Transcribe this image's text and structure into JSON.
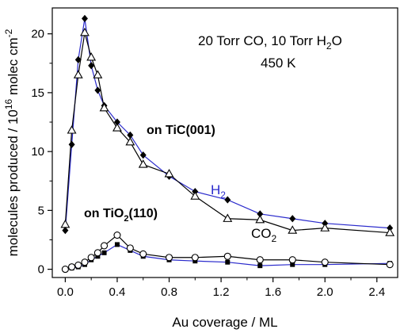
{
  "chart_data": {
    "type": "line",
    "xlabel": "Au coverage / ML",
    "ylabel": "molecules produced / 10",
    "ylabel_exponent": "16",
    "ylabel_unit": " molec cm",
    "ylabel_unit_exponent": "-2",
    "xlim": [
      -0.1,
      2.56
    ],
    "ylim": [
      -0.7,
      22.2
    ],
    "xticks": [
      "0.0",
      "0.4",
      "0.8",
      "1.2",
      "1.6",
      "2.0",
      "2.4"
    ],
    "xtick_values": [
      0.0,
      0.4,
      0.8,
      1.2,
      1.6,
      2.0,
      2.4
    ],
    "yticks": [
      "0",
      "5",
      "10",
      "15",
      "20"
    ],
    "ytick_values": [
      0,
      5,
      10,
      15,
      20
    ],
    "grid": false,
    "conditions_line1": "20 Torr CO, 10 Torr H",
    "conditions_line1_sub": "2",
    "conditions_line1_tail": "O",
    "conditions_line2": "450 K",
    "label_tic_prefix": "on TiC(001)",
    "label_tio2_prefix": "on TiO",
    "label_tio2_sub": "2",
    "label_tio2_suffix": "(110)",
    "label_h2_main": "H",
    "label_h2_sub": "2",
    "label_co2_main": "CO",
    "label_co2_sub": "2",
    "colors": {
      "h2_line": "#2a2acc",
      "co2_line": "#000000",
      "axis": "#000000"
    },
    "series": [
      {
        "name": "H2",
        "substrate": "TiC(001)",
        "marker": "filled-diamond",
        "x": [
          0.0,
          0.05,
          0.1,
          0.15,
          0.2,
          0.25,
          0.3,
          0.4,
          0.5,
          0.6,
          0.8,
          1.0,
          1.25,
          1.5,
          1.75,
          2.0,
          2.5
        ],
        "values": [
          3.3,
          10.6,
          17.8,
          21.3,
          17.3,
          15.2,
          13.9,
          12.5,
          11.4,
          9.7,
          7.9,
          6.6,
          5.9,
          4.7,
          4.3,
          3.9,
          3.5
        ]
      },
      {
        "name": "CO2",
        "substrate": "TiC(001)",
        "marker": "open-triangle",
        "x": [
          0.0,
          0.05,
          0.1,
          0.15,
          0.2,
          0.25,
          0.3,
          0.4,
          0.5,
          0.6,
          0.8,
          1.0,
          1.25,
          1.5,
          1.75,
          2.0,
          2.5
        ],
        "values": [
          3.8,
          11.8,
          16.5,
          20.1,
          18.0,
          16.5,
          13.7,
          12.0,
          10.8,
          8.9,
          8.1,
          6.2,
          4.3,
          4.2,
          3.3,
          3.5,
          3.1
        ]
      },
      {
        "name": "CO2",
        "substrate": "TiO2(110)",
        "marker": "open-circle",
        "x": [
          0.0,
          0.05,
          0.1,
          0.15,
          0.2,
          0.25,
          0.3,
          0.4,
          0.5,
          0.6,
          0.8,
          1.0,
          1.25,
          1.5,
          1.75,
          2.0,
          2.5
        ],
        "values": [
          0.0,
          0.2,
          0.35,
          0.6,
          1.0,
          1.4,
          2.0,
          2.9,
          1.8,
          1.3,
          1.0,
          1.0,
          1.1,
          0.8,
          0.8,
          0.6,
          0.4
        ]
      },
      {
        "name": "H2",
        "substrate": "TiO2(110)",
        "marker": "filled-square",
        "x": [
          0.0,
          0.05,
          0.1,
          0.15,
          0.2,
          0.25,
          0.3,
          0.4,
          0.5,
          0.6,
          0.8,
          1.0,
          1.25,
          1.5,
          1.75,
          2.0,
          2.5
        ],
        "values": [
          0.0,
          0.1,
          0.2,
          0.4,
          0.8,
          1.1,
          1.4,
          2.1,
          1.6,
          1.1,
          0.8,
          0.7,
          0.6,
          0.3,
          0.4,
          0.4,
          0.5
        ]
      }
    ]
  }
}
